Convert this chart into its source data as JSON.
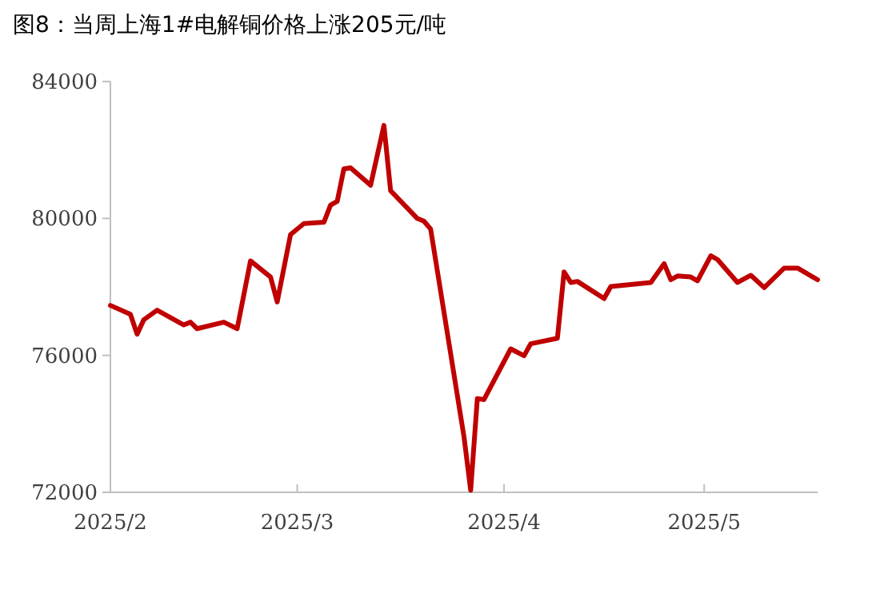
{
  "chart_data": {
    "type": "line",
    "title": "图8：当周上海1#电解铜价格上涨205元/吨",
    "xlim": [
      "2025-02-01",
      "2025-05-18"
    ],
    "xticks": [
      {
        "value": "2025-02-01",
        "label": "2025/2"
      },
      {
        "value": "2025-03-01",
        "label": "2025/3"
      },
      {
        "value": "2025-04-01",
        "label": "2025/4"
      },
      {
        "value": "2025-05-01",
        "label": "2025/5"
      }
    ],
    "ylim": [
      72000,
      84000
    ],
    "yticks": [
      72000,
      76000,
      80000,
      84000
    ],
    "grid": false,
    "marker": "none",
    "line_style": "solid",
    "series": [
      {
        "color": "#c00000",
        "x": [
          "2025-02-01",
          "2025-02-04",
          "2025-02-05",
          "2025-02-06",
          "2025-02-08",
          "2025-02-12",
          "2025-02-13",
          "2025-02-14",
          "2025-02-18",
          "2025-02-20",
          "2025-02-22",
          "2025-02-25",
          "2025-02-26",
          "2025-02-28",
          "2025-03-02",
          "2025-03-05",
          "2025-03-06",
          "2025-03-07",
          "2025-03-08",
          "2025-03-09",
          "2025-03-12",
          "2025-03-14",
          "2025-03-15",
          "2025-03-19",
          "2025-03-20",
          "2025-03-21",
          "2025-03-26",
          "2025-03-27",
          "2025-03-28",
          "2025-03-29",
          "2025-04-02",
          "2025-04-04",
          "2025-04-05",
          "2025-04-09",
          "2025-04-10",
          "2025-04-11",
          "2025-04-12",
          "2025-04-16",
          "2025-04-17",
          "2025-04-23",
          "2025-04-25",
          "2025-04-26",
          "2025-04-27",
          "2025-04-29",
          "2025-04-30",
          "2025-05-02",
          "2025-05-03",
          "2025-05-06",
          "2025-05-08",
          "2025-05-10",
          "2025-05-13",
          "2025-05-15",
          "2025-05-18"
        ],
        "values": [
          77460,
          77200,
          76620,
          77040,
          77320,
          76890,
          76970,
          76780,
          76970,
          76780,
          78760,
          78290,
          77560,
          79530,
          79850,
          79890,
          80390,
          80500,
          81450,
          81480,
          80970,
          82720,
          80810,
          80000,
          79920,
          79690,
          73620,
          72060,
          74740,
          74710,
          76190,
          75990,
          76340,
          76500,
          78440,
          78130,
          78160,
          77660,
          78010,
          78130,
          78680,
          78210,
          78320,
          78290,
          78180,
          78910,
          78800,
          78130,
          78340,
          77980,
          78550,
          78550,
          78210
        ]
      }
    ]
  }
}
